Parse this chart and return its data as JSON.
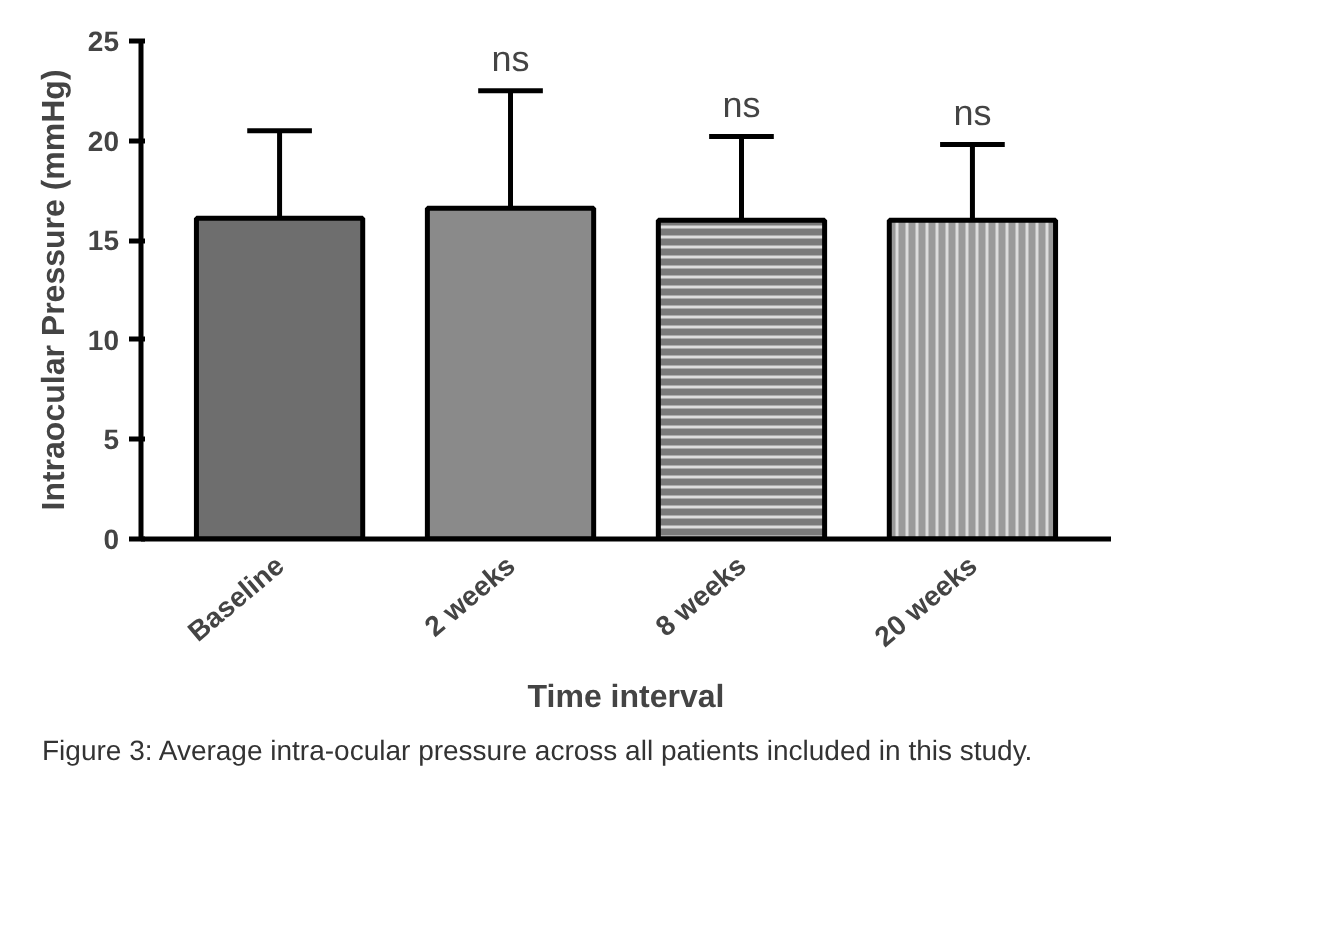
{
  "chart_data": {
    "type": "bar",
    "xlabel": "Time interval",
    "ylabel": "Intraocular Pressure (mmHg)",
    "categories": [
      "Baseline",
      "2 weeks",
      "8 weeks",
      "20 weeks"
    ],
    "values": [
      16.1,
      16.6,
      16.0,
      16.0
    ],
    "colors": [
      "#6e6e6e",
      "#8a8a8a",
      "#7a7a7a",
      "#9a9a9a"
    ],
    "errors": [
      [
        16.1,
        20.5
      ],
      [
        16.6,
        22.5
      ],
      [
        16.0,
        20.2
      ],
      [
        16.0,
        19.8
      ]
    ],
    "ylim": [
      0,
      25
    ],
    "yticks": [
      0,
      5,
      10,
      15,
      20,
      25
    ],
    "grid": false,
    "annotations": [
      {
        "text": "ns",
        "x": "2 weeks",
        "y": 22.5
      },
      {
        "text": "ns",
        "x": "8 weeks",
        "y": 20.2
      },
      {
        "text": "ns",
        "x": "20 weeks",
        "y": 19.8
      },
      "Figure 3: Average intra-ocular pressure across all patients included in this study."
    ]
  }
}
